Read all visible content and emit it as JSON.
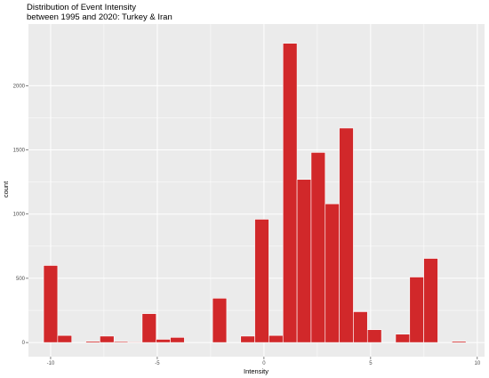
{
  "chart_data": {
    "type": "bar",
    "title": "Distribution of Event Intensity",
    "subtitle": "between 1995 and 2020: Turkey & Iran",
    "xlabel": "Intensity",
    "ylabel": "count",
    "xlim": [
      -11.04,
      10.34
    ],
    "ylim": [
      -110,
      2480
    ],
    "xticks": [
      -10,
      -5,
      0,
      5,
      10
    ],
    "yticks": [
      0,
      500,
      1000,
      1500,
      2000
    ],
    "xtick_labels": [
      "-10",
      "-5",
      "0",
      "5",
      "10"
    ],
    "ytick_labels": [
      "0",
      "500",
      "1000",
      "1500",
      "2000"
    ],
    "grid": true,
    "bar_color": "#d1282a",
    "panel_color": "#ebebeb",
    "bin_width": 0.66,
    "bins": [
      {
        "x": -10.0,
        "count": 600
      },
      {
        "x": -9.34,
        "count": 55
      },
      {
        "x": -8.68,
        "count": 0
      },
      {
        "x": -8.02,
        "count": 10
      },
      {
        "x": -7.36,
        "count": 50
      },
      {
        "x": -6.7,
        "count": 8
      },
      {
        "x": -6.04,
        "count": 5
      },
      {
        "x": -5.38,
        "count": 225
      },
      {
        "x": -4.72,
        "count": 25
      },
      {
        "x": -4.06,
        "count": 40
      },
      {
        "x": -3.4,
        "count": 0
      },
      {
        "x": -2.74,
        "count": 0
      },
      {
        "x": -2.08,
        "count": 345
      },
      {
        "x": -1.42,
        "count": 0
      },
      {
        "x": -0.76,
        "count": 50
      },
      {
        "x": -0.1,
        "count": 960
      },
      {
        "x": 0.56,
        "count": 55
      },
      {
        "x": 1.22,
        "count": 2330
      },
      {
        "x": 1.88,
        "count": 1270
      },
      {
        "x": 2.54,
        "count": 1480
      },
      {
        "x": 3.2,
        "count": 1080
      },
      {
        "x": 3.86,
        "count": 1670
      },
      {
        "x": 4.52,
        "count": 240
      },
      {
        "x": 5.18,
        "count": 100
      },
      {
        "x": 5.84,
        "count": 0
      },
      {
        "x": 6.5,
        "count": 65
      },
      {
        "x": 7.16,
        "count": 510
      },
      {
        "x": 7.82,
        "count": 655
      },
      {
        "x": 8.48,
        "count": 0
      },
      {
        "x": 9.14,
        "count": 10
      }
    ]
  }
}
